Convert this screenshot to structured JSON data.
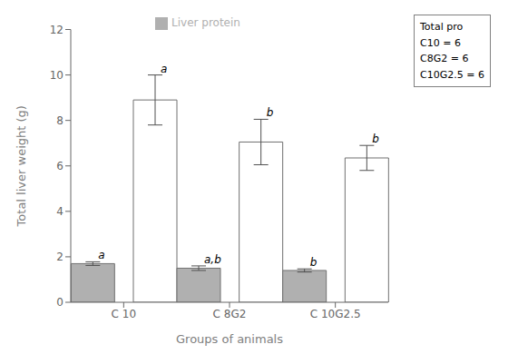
{
  "chart_data": {
    "type": "bar",
    "categories": [
      "C 10",
      "C 8G2",
      "C 10G2.5"
    ],
    "series": [
      {
        "color": "#ffffff",
        "values": [
          8.9,
          7.05,
          6.35
        ],
        "error": [
          1.1,
          1.0,
          0.55
        ],
        "annotations": [
          "a",
          "b",
          "b"
        ]
      },
      {
        "name": "Liver protein",
        "color": "#b0b0b0",
        "values": [
          1.7,
          1.5,
          1.4
        ],
        "error": [
          0.08,
          0.1,
          0.07
        ],
        "annotations": [
          "a",
          "a,b",
          "b"
        ]
      }
    ],
    "xlabel": "Groups of animals",
    "ylabel": "Total liver weight (g)",
    "ylim": [
      0,
      12
    ],
    "yticks": [
      0,
      2,
      4,
      6,
      8,
      10,
      12
    ],
    "legend": "top",
    "text_box": [
      "Total pro",
      "C10 = 6",
      "C8G2 = 6",
      "C10G2.5 = 6"
    ]
  }
}
